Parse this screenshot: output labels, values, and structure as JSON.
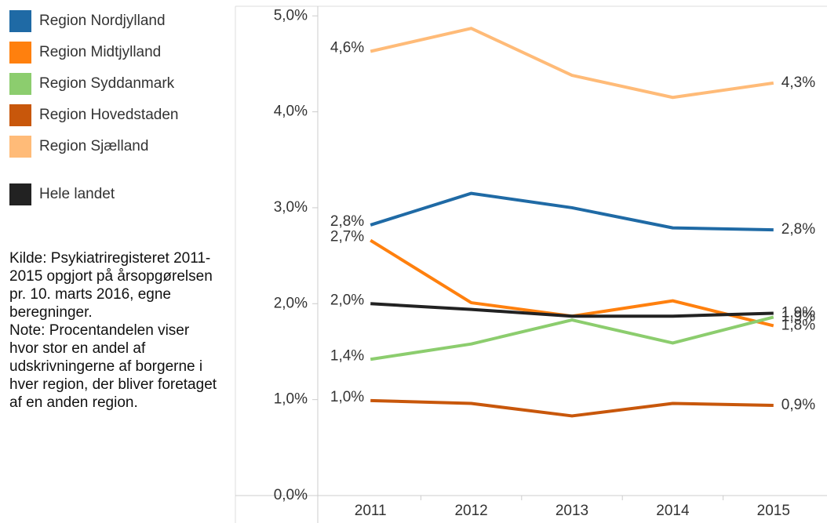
{
  "chart_data": {
    "type": "line",
    "categories": [
      "2011",
      "2012",
      "2013",
      "2014",
      "2015"
    ],
    "series": [
      {
        "name": "Region Nordjylland",
        "color": "#1f6aa5",
        "values": [
          2.82,
          3.15,
          3.0,
          2.79,
          2.77
        ],
        "value_labels": [
          "2,8%",
          null,
          null,
          null,
          "2,8%"
        ]
      },
      {
        "name": "Region Midtjylland",
        "color": "#ff800e",
        "values": [
          2.66,
          2.01,
          1.87,
          2.03,
          1.77
        ],
        "value_labels": [
          "2,7%",
          null,
          null,
          null,
          "1,8%"
        ]
      },
      {
        "name": "Region Syddanmark",
        "color": "#8ccd6e",
        "values": [
          1.42,
          1.58,
          1.83,
          1.59,
          1.86
        ],
        "value_labels": [
          "1,4%",
          null,
          null,
          null,
          "1,9%"
        ]
      },
      {
        "name": "Region Hovedstaden",
        "color": "#c8570b",
        "values": [
          0.99,
          0.96,
          0.83,
          0.96,
          0.94
        ],
        "value_labels": [
          "1,0%",
          null,
          null,
          null,
          "0,9%"
        ]
      },
      {
        "name": "Region Sjælland",
        "color": "#ffbb78",
        "values": [
          4.63,
          4.87,
          4.38,
          4.15,
          4.3
        ],
        "value_labels": [
          "4,6%",
          null,
          null,
          null,
          "4,3%"
        ]
      },
      {
        "name": "Hele landet",
        "color": "#222222",
        "values": [
          2.0,
          1.94,
          1.87,
          1.87,
          1.9
        ],
        "value_labels": [
          "2,0%",
          null,
          null,
          null,
          "1,9%"
        ]
      }
    ],
    "ylim": [
      0,
      5.1
    ],
    "yticks": [
      {
        "value": 0,
        "label": "0,0%"
      },
      {
        "value": 1,
        "label": "1,0%"
      },
      {
        "value": 2,
        "label": "2,0%"
      },
      {
        "value": 3,
        "label": "3,0%"
      },
      {
        "value": 4,
        "label": "4,0%"
      },
      {
        "value": 5,
        "label": "5,0%"
      }
    ],
    "source": "Kilde: Psykiatriregisteret 2011-2015 opgjort på årsopgørelsen pr. 10. marts 2016, egne beregninger.",
    "note": "Note: Procentandelen viser hvor stor en andel af udskrivningerne af borgerne i hver region, der bliver foretaget af en anden region.",
    "grid": false
  }
}
